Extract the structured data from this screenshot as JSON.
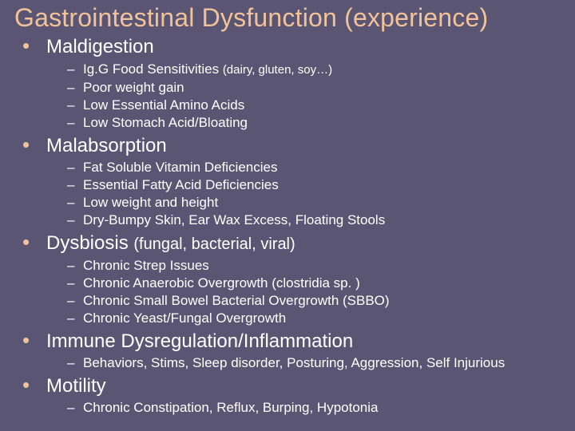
{
  "background_color": "#5a5572",
  "accent_color": "#f2c39a",
  "text_color": "#ffffff",
  "title": "Gastrointestinal Dysfunction (experience)",
  "sections": [
    {
      "topic": "Maldigestion",
      "topic_suffix": "",
      "subs": [
        {
          "text": "Ig.G Food Sensitivities ",
          "suffix": "(dairy, gluten, soy…)"
        },
        {
          "text": "Poor weight gain",
          "suffix": ""
        },
        {
          "text": "Low Essential Amino Acids",
          "suffix": ""
        },
        {
          "text": "Low Stomach Acid/Bloating",
          "suffix": ""
        }
      ]
    },
    {
      "topic": "Malabsorption",
      "topic_suffix": "",
      "subs": [
        {
          "text": "Fat Soluble Vitamin Deficiencies",
          "suffix": ""
        },
        {
          "text": "Essential Fatty Acid Deficiencies",
          "suffix": ""
        },
        {
          "text": "Low weight and height",
          "suffix": ""
        },
        {
          "text": "Dry-Bumpy Skin, Ear Wax Excess, Floating Stools",
          "suffix": ""
        }
      ]
    },
    {
      "topic": "Dysbiosis ",
      "topic_suffix": "(fungal, bacterial, viral)",
      "subs": [
        {
          "text": "Chronic Strep Issues",
          "suffix": ""
        },
        {
          "text": "Chronic Anaerobic Overgrowth (clostridia sp. )",
          "suffix": ""
        },
        {
          "text": "Chronic Small Bowel Bacterial Overgrowth (SBBO)",
          "suffix": ""
        },
        {
          "text": "Chronic Yeast/Fungal Overgrowth",
          "suffix": ""
        }
      ]
    },
    {
      "topic": "Immune Dysregulation/Inflammation",
      "topic_suffix": "",
      "subs": [
        {
          "text": "Behaviors, Stims, Sleep disorder, Posturing, Aggression, Self Injurious",
          "suffix": ""
        }
      ]
    },
    {
      "topic": "Motility",
      "topic_suffix": "",
      "subs": [
        {
          "text": "Chronic Constipation, Reflux, Burping, Hypotonia",
          "suffix": ""
        }
      ]
    }
  ]
}
